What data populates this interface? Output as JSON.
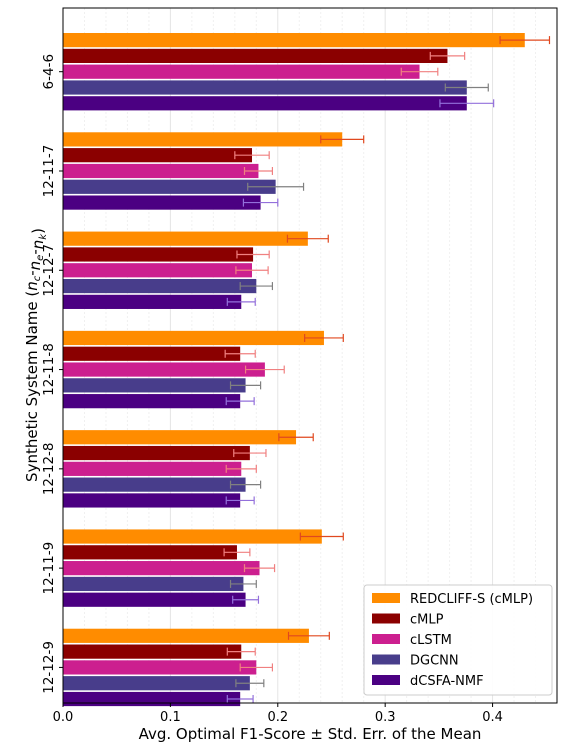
{
  "chart_data": {
    "type": "bar",
    "orientation": "horizontal",
    "xlabel": "Avg. Optimal F1-Score ± Std. Err. of the Mean",
    "ylabel_prefix": "Synthetic System Name (",
    "ylabel_vars": [
      "n",
      "c",
      "n",
      "e",
      "n",
      "k"
    ],
    "ylabel_suffix": ")",
    "xlim": [
      0.0,
      0.46
    ],
    "xticks": [
      "0.0",
      "0.1",
      "0.2",
      "0.3",
      "0.4"
    ],
    "grid": "vertical dashed minor + major",
    "legend_position": "lower-right",
    "categories": [
      "6-4-6",
      "12-11-7",
      "12-12-7",
      "12-11-8",
      "12-12-8",
      "12-11-9",
      "12-12-9"
    ],
    "series": [
      {
        "name": "REDCLIFF-S (cMLP)",
        "color": "#ff8c00",
        "errcolor": "#e0481f",
        "values": [
          0.43,
          0.26,
          0.228,
          0.243,
          0.217,
          0.241,
          0.229
        ],
        "errors": [
          0.023,
          0.02,
          0.019,
          0.018,
          0.016,
          0.02,
          0.019
        ]
      },
      {
        "name": "cMLP",
        "color": "#8b0000",
        "errcolor": "#f08080",
        "values": [
          0.358,
          0.176,
          0.177,
          0.165,
          0.174,
          0.162,
          0.166
        ],
        "errors": [
          0.016,
          0.016,
          0.015,
          0.014,
          0.015,
          0.012,
          0.013
        ]
      },
      {
        "name": "cLSTM",
        "color": "#cc1f8f",
        "errcolor": "#f08080",
        "values": [
          0.332,
          0.182,
          0.176,
          0.188,
          0.166,
          0.183,
          0.18
        ],
        "errors": [
          0.017,
          0.013,
          0.015,
          0.018,
          0.014,
          0.014,
          0.015
        ]
      },
      {
        "name": "DGCNN",
        "color": "#483d8b",
        "errcolor": "#808080",
        "values": [
          0.376,
          0.198,
          0.18,
          0.17,
          0.17,
          0.168,
          0.174
        ],
        "errors": [
          0.02,
          0.026,
          0.015,
          0.014,
          0.014,
          0.012,
          0.013
        ]
      },
      {
        "name": "dCSFA-NMF",
        "color": "#4b0082",
        "errcolor": "#9370db",
        "values": [
          0.376,
          0.184,
          0.166,
          0.165,
          0.165,
          0.17,
          0.165
        ],
        "errors": [
          0.025,
          0.016,
          0.013,
          0.013,
          0.013,
          0.012,
          0.012
        ]
      }
    ]
  }
}
